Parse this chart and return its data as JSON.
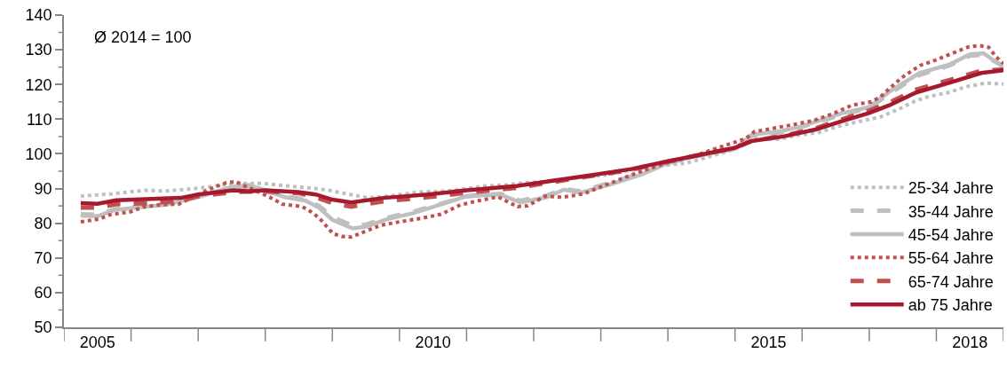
{
  "chart_data": {
    "type": "line",
    "annotations": [
      "Ø 2014 = 100"
    ],
    "xlim": [
      2005,
      2019
    ],
    "xticks": [
      {
        "value": 2005,
        "label": null
      },
      {
        "value": 2006,
        "label": null
      },
      {
        "value": 2007,
        "label": null
      },
      {
        "value": 2008,
        "label": null
      },
      {
        "value": 2009,
        "label": null
      },
      {
        "value": 2010,
        "label": null
      },
      {
        "value": 2011,
        "label": null
      },
      {
        "value": 2012,
        "label": null
      },
      {
        "value": 2013,
        "label": null
      },
      {
        "value": 2014,
        "label": null
      },
      {
        "value": 2015,
        "label": null
      },
      {
        "value": 2016,
        "label": null
      },
      {
        "value": 2017,
        "label": null
      },
      {
        "value": 2018,
        "label": null
      },
      {
        "value": 2019,
        "label": null
      },
      {
        "value": 2005.5,
        "label": "2005"
      },
      {
        "value": 2010.5,
        "label": "2010"
      },
      {
        "value": 2015.5,
        "label": "2015"
      },
      {
        "value": 2018.5,
        "label": "2018"
      }
    ],
    "ylim": [
      50,
      140
    ],
    "yticks": [
      50,
      60,
      70,
      80,
      90,
      100,
      110,
      120,
      130,
      140,
      {
        "value": 55,
        "label": null
      },
      {
        "value": 65,
        "label": null
      },
      {
        "value": 75,
        "label": null
      },
      {
        "value": 85,
        "label": null
      },
      {
        "value": 95,
        "label": null
      },
      {
        "value": 105,
        "label": null
      },
      {
        "value": 115,
        "label": null
      },
      {
        "value": 125,
        "label": null
      },
      {
        "value": 135,
        "label": null
      }
    ],
    "legend": "bottom right",
    "series": [
      {
        "name": "25-34 Jahre",
        "color": "#bfbfbf",
        "line_style": "dotted",
        "x": [
          2005.25,
          2005.72,
          2005.97,
          2006.2,
          2006.5,
          2006.79,
          2007.05,
          2007.34,
          2007.66,
          2007.97,
          2008.2,
          2008.45,
          2008.75,
          2008.95,
          2009.26,
          2009.55,
          2009.9,
          2010.3,
          2010.6,
          2010.92,
          2011.25,
          2011.57,
          2011.87,
          2012.14,
          2012.46,
          2012.76,
          2013.08,
          2013.38,
          2013.68,
          2014.0,
          2014.27,
          2014.8,
          2014.99,
          2015.33,
          2015.64,
          2015.95,
          2016.25,
          2016.57,
          2016.84,
          2017.16,
          2017.43,
          2017.68,
          2017.88,
          2018.18,
          2018.45,
          2018.74,
          2019.0
        ],
        "values": [
          87.8,
          88.5,
          89,
          89.5,
          89.3,
          89.7,
          90.2,
          91,
          91.5,
          91.5,
          91,
          90.5,
          90,
          89.5,
          88.3,
          87.3,
          88,
          89,
          89.2,
          89.7,
          90.7,
          91,
          91.7,
          92,
          92.7,
          93.4,
          93.9,
          95.1,
          95.9,
          96.8,
          97.3,
          100.2,
          101.3,
          104.4,
          104.2,
          105.4,
          106.2,
          108.1,
          109.3,
          110.6,
          112.8,
          115.2,
          116.5,
          117.7,
          119.4,
          120.4,
          120.1
        ]
      },
      {
        "name": "35-44 Jahre",
        "color": "#bfbfbf",
        "line_style": "dashed",
        "x": [
          2005.25,
          2005.5,
          2005.75,
          2006.2,
          2006.5,
          2007.0,
          2007.5,
          2007.75,
          2008.0,
          2008.3,
          2008.6,
          2008.8,
          2009.0,
          2009.3,
          2009.5,
          2009.8,
          2010.2,
          2010.6,
          2011.0,
          2011.5,
          2011.8,
          2012.2,
          2012.45,
          2012.7,
          2013.2,
          2013.6,
          2014.0,
          2014.4,
          2015.0,
          2015.25,
          2015.7,
          2016.0,
          2016.57,
          2017.0,
          2017.3,
          2017.75,
          2018.2,
          2018.5,
          2018.7,
          2019.0
        ],
        "values": [
          82.6,
          82.4,
          84,
          85,
          85.6,
          87.8,
          90.2,
          90.5,
          89.3,
          87.8,
          86.8,
          85,
          81.8,
          79.3,
          79.6,
          81.5,
          83.3,
          85.5,
          87.8,
          88.5,
          86.5,
          88,
          89.9,
          89.2,
          92,
          94.3,
          97.3,
          99.3,
          101.5,
          105.2,
          106.2,
          107.8,
          111.2,
          113.2,
          117.4,
          122.8,
          125.5,
          128.3,
          128.6,
          125.2
        ]
      },
      {
        "name": "45-54 Jahre",
        "color": "#bfbfbf",
        "line_style": "solid",
        "x": [
          2005.25,
          2005.5,
          2005.75,
          2006.2,
          2006.5,
          2007.0,
          2007.5,
          2007.75,
          2008.0,
          2008.3,
          2008.6,
          2008.8,
          2009.0,
          2009.3,
          2009.5,
          2009.8,
          2010.2,
          2010.6,
          2011.0,
          2011.5,
          2011.8,
          2012.2,
          2012.45,
          2012.7,
          2013.2,
          2013.6,
          2014.0,
          2014.4,
          2015.0,
          2015.25,
          2015.7,
          2016.0,
          2016.57,
          2017.0,
          2017.3,
          2017.75,
          2018.2,
          2018.5,
          2018.7,
          2019.0
        ],
        "values": [
          82.2,
          82,
          83.8,
          84.8,
          85.3,
          87.5,
          90.5,
          91,
          89.5,
          87.5,
          86.5,
          84.5,
          81,
          78.5,
          79,
          81.1,
          82.9,
          85.3,
          87.8,
          88.3,
          86,
          87.5,
          89.7,
          88.8,
          91.5,
          94,
          97.3,
          99.3,
          101.5,
          105.5,
          106.6,
          108,
          111.6,
          113.5,
          117.9,
          123.3,
          125.8,
          128.7,
          129,
          125
        ]
      },
      {
        "name": "55-64 Jahre",
        "color": "#c0504d",
        "line_style": "dotted",
        "x": [
          2005.25,
          2005.52,
          2005.7,
          2005.99,
          2006.19,
          2006.42,
          2006.71,
          2006.87,
          2007.13,
          2007.42,
          2007.56,
          2007.7,
          2007.96,
          2008.12,
          2008.25,
          2008.55,
          2008.68,
          2008.8,
          2008.91,
          2009.01,
          2009.14,
          2009.28,
          2009.43,
          2009.72,
          2010.0,
          2010.32,
          2010.62,
          2010.91,
          2011.18,
          2011.47,
          2011.63,
          2011.76,
          2011.91,
          2012.17,
          2012.43,
          2012.75,
          2013.03,
          2013.32,
          2013.62,
          2013.93,
          2014.37,
          2015.16,
          2015.29,
          2015.58,
          2015.86,
          2016.17,
          2016.45,
          2016.74,
          2017.03,
          2017.17,
          2017.39,
          2017.53,
          2017.76,
          2017.92,
          2018.2,
          2018.49,
          2018.64,
          2018.78,
          2018.88,
          2019.0
        ],
        "values": [
          80.4,
          81.2,
          82.5,
          83.3,
          84.7,
          85.3,
          85.5,
          87,
          89.5,
          91.7,
          92,
          90.7,
          88.5,
          87,
          85.5,
          84.8,
          83.3,
          81.6,
          79.2,
          77,
          76.2,
          76,
          77.2,
          79.4,
          80.4,
          81.4,
          82.6,
          85.3,
          86.5,
          87.6,
          86,
          84.8,
          85,
          87.8,
          87.5,
          88.5,
          90.7,
          92.9,
          95.1,
          97.1,
          99.3,
          104.4,
          106.4,
          107.4,
          108.4,
          109.6,
          111.5,
          114,
          115,
          116.5,
          120.4,
          122.6,
          125.5,
          126.5,
          128.7,
          130.9,
          131.2,
          130.7,
          128.2,
          126
        ]
      },
      {
        "name": "65-74 Jahre",
        "color": "#c0504d",
        "line_style": "dashed",
        "x": [
          2005.25,
          2005.5,
          2005.78,
          2006.3,
          2006.74,
          2007.0,
          2007.53,
          2008.0,
          2008.49,
          2008.75,
          2009.0,
          2009.28,
          2009.76,
          2010.42,
          2011.0,
          2011.74,
          2012.26,
          2012.88,
          2013.45,
          2013.93,
          2014.37,
          2014.99,
          2015.25,
          2015.72,
          2016.2,
          2016.57,
          2017.0,
          2017.3,
          2017.7,
          2018.18,
          2018.67,
          2019.0
        ],
        "values": [
          84.5,
          84.5,
          85.5,
          85.8,
          86.5,
          87.8,
          89,
          89.2,
          88.7,
          87.5,
          85.8,
          84.8,
          86.3,
          87.5,
          88.8,
          90.2,
          91.8,
          93.7,
          95.4,
          97.5,
          99.3,
          101.7,
          103.7,
          105.2,
          107.3,
          109.8,
          112.5,
          114.8,
          118.5,
          121.2,
          124,
          124.3
        ]
      },
      {
        "name": "ab 75 Jahre",
        "color": "#a6192e",
        "line_style": "solid",
        "x": [
          2005.25,
          2005.5,
          2005.78,
          2006.3,
          2006.74,
          2007.0,
          2007.53,
          2007.75,
          2008.0,
          2008.49,
          2008.75,
          2009.0,
          2009.28,
          2009.76,
          2010.42,
          2011.0,
          2011.74,
          2012.26,
          2012.88,
          2013.45,
          2013.93,
          2014.37,
          2014.99,
          2015.25,
          2015.72,
          2016.2,
          2016.57,
          2017.0,
          2017.3,
          2017.7,
          2018.18,
          2018.67,
          2019.0
        ],
        "values": [
          85.8,
          85.6,
          86.6,
          87,
          87.3,
          88.3,
          89.5,
          89.2,
          89.5,
          89,
          88.3,
          86.8,
          86,
          87.3,
          88.3,
          89.5,
          90.7,
          92.2,
          93.9,
          95.6,
          97.6,
          99.3,
          101.7,
          103.7,
          105,
          107,
          109.3,
          111.8,
          114,
          117.7,
          120.4,
          123.3,
          124.1
        ]
      }
    ]
  }
}
